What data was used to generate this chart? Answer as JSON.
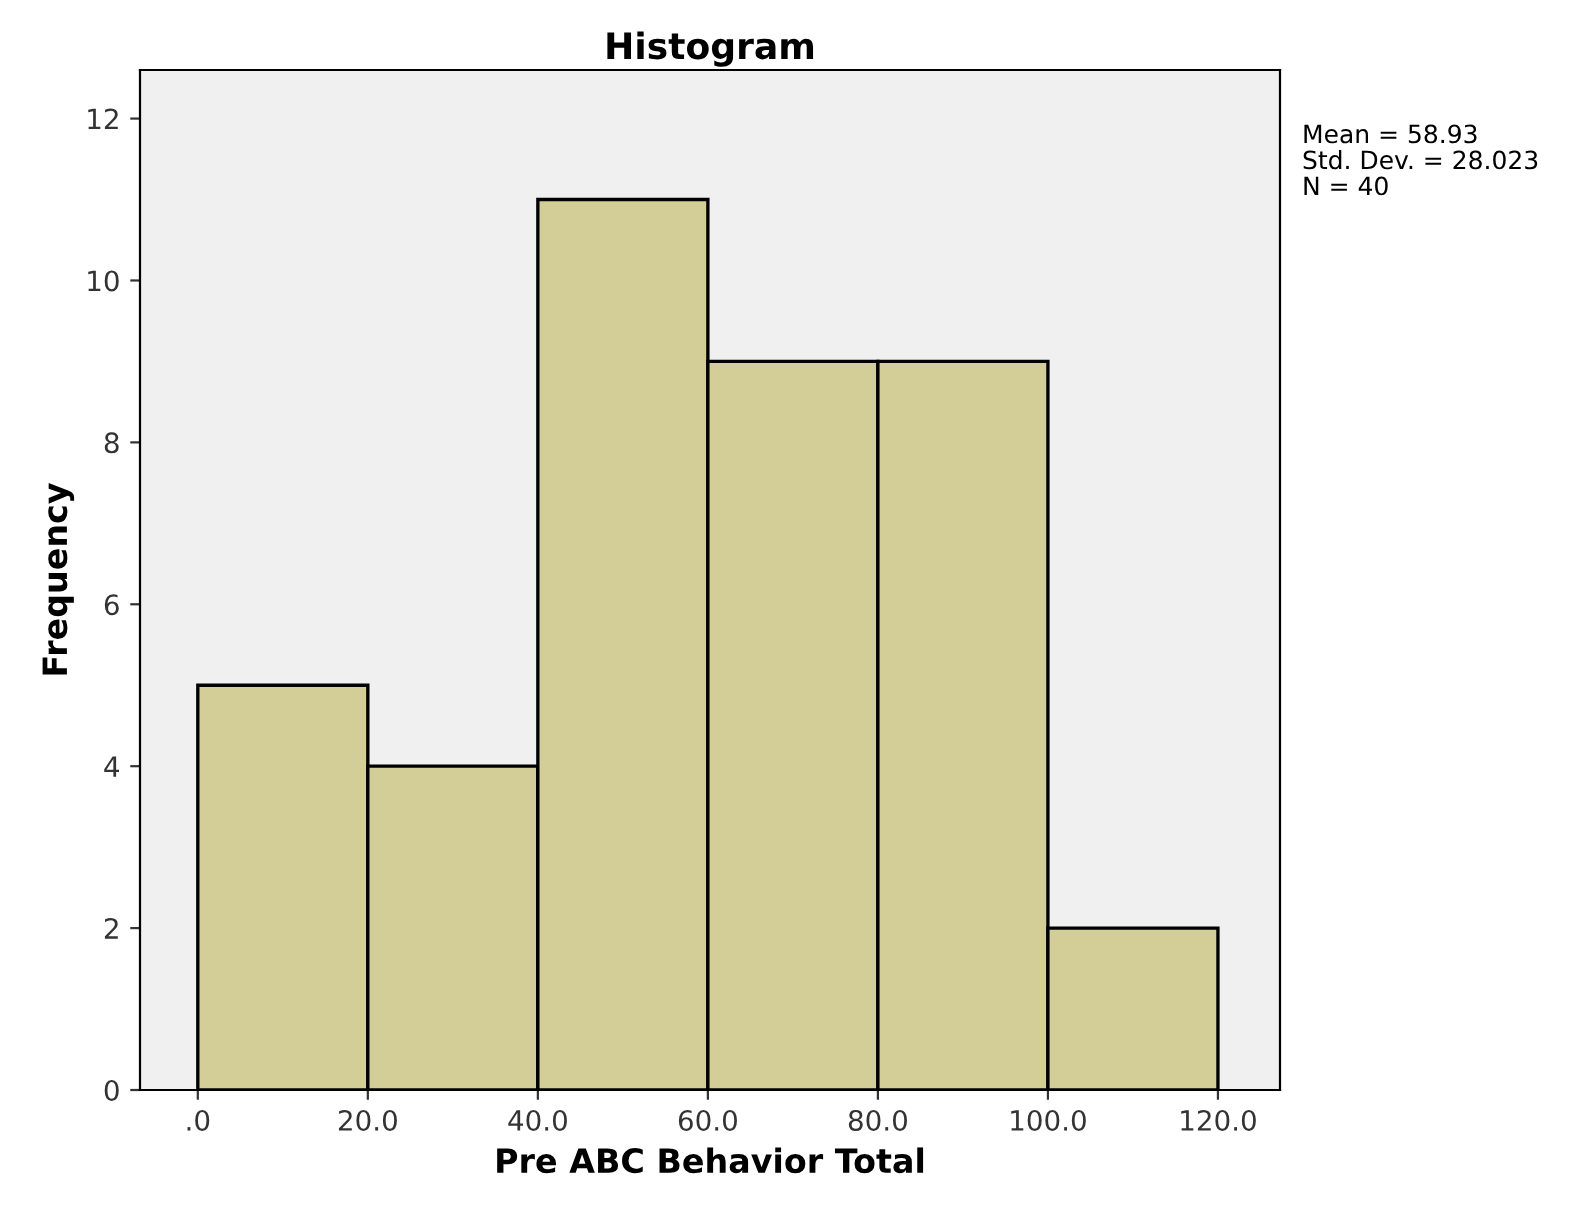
{
  "chart_data": {
    "type": "histogram",
    "title": "Histogram",
    "xlabel": "Pre ABC Behavior Total",
    "ylabel": "Frequency",
    "bins": [
      0,
      20,
      40,
      60,
      80,
      100,
      120
    ],
    "values": [
      5,
      4,
      11,
      9,
      9,
      2
    ],
    "color": "#d3ce98",
    "xlim": [
      -6.8,
      127.3
    ],
    "ylim": [
      0,
      12.6
    ],
    "xticks": [
      {
        "value": 0,
        "label": ".0"
      },
      {
        "value": 20,
        "label": "20.0"
      },
      {
        "value": 40,
        "label": "40.0"
      },
      {
        "value": 60,
        "label": "60.0"
      },
      {
        "value": 80,
        "label": "80.0"
      },
      {
        "value": 100,
        "label": "100.0"
      },
      {
        "value": 120,
        "label": "120.0"
      }
    ],
    "yticks": [
      0,
      2,
      4,
      6,
      8,
      10,
      12
    ],
    "grid": false,
    "annotations": [
      "Mean = 58.93",
      "Std. Dev. = 28.023",
      "N = 40"
    ]
  }
}
